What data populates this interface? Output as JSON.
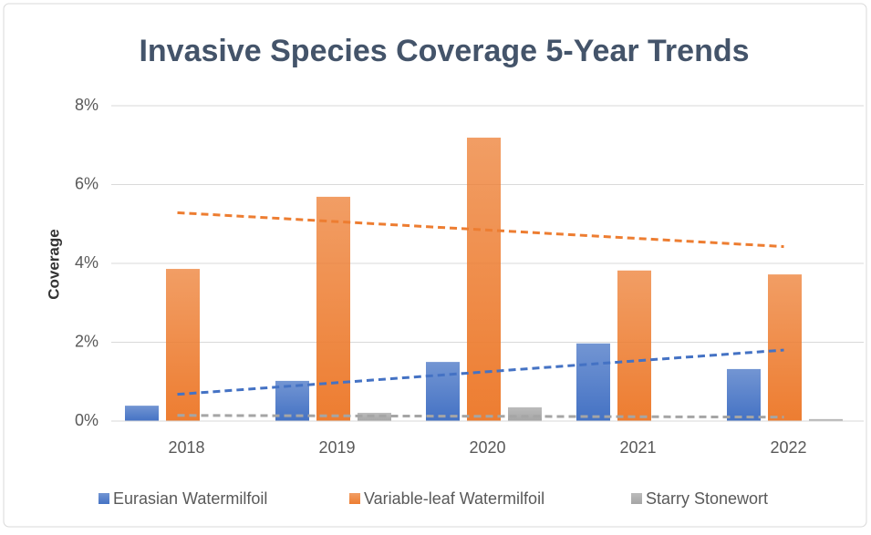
{
  "chart_data": {
    "type": "bar",
    "title": "Invasive Species Coverage 5-Year Trends",
    "y_label": "Coverage",
    "categories": [
      "2018",
      "2019",
      "2020",
      "2021",
      "2022"
    ],
    "series": [
      {
        "name": "Eurasian Watermilfoil",
        "color": "#4472c4",
        "values": [
          0.39,
          1.02,
          1.5,
          1.97,
          1.32
        ]
      },
      {
        "name": "Variable-leaf Watermilfoil",
        "color": "#ed7d31",
        "values": [
          3.86,
          5.69,
          7.19,
          3.82,
          3.72
        ]
      },
      {
        "name": "Starry Stonewort",
        "color": "#a5a5a5",
        "values": [
          0,
          0.21,
          0.35,
          0,
          0.05
        ]
      }
    ],
    "ylim": [
      0,
      8
    ],
    "yticks": [
      {
        "value": 0,
        "label": "0%"
      },
      {
        "value": 2,
        "label": "2%"
      },
      {
        "value": 4,
        "label": "4%"
      },
      {
        "value": 6,
        "label": "6%"
      },
      {
        "value": 8,
        "label": "8%"
      }
    ],
    "grid": true,
    "trendline": true,
    "legend": "bottom"
  }
}
